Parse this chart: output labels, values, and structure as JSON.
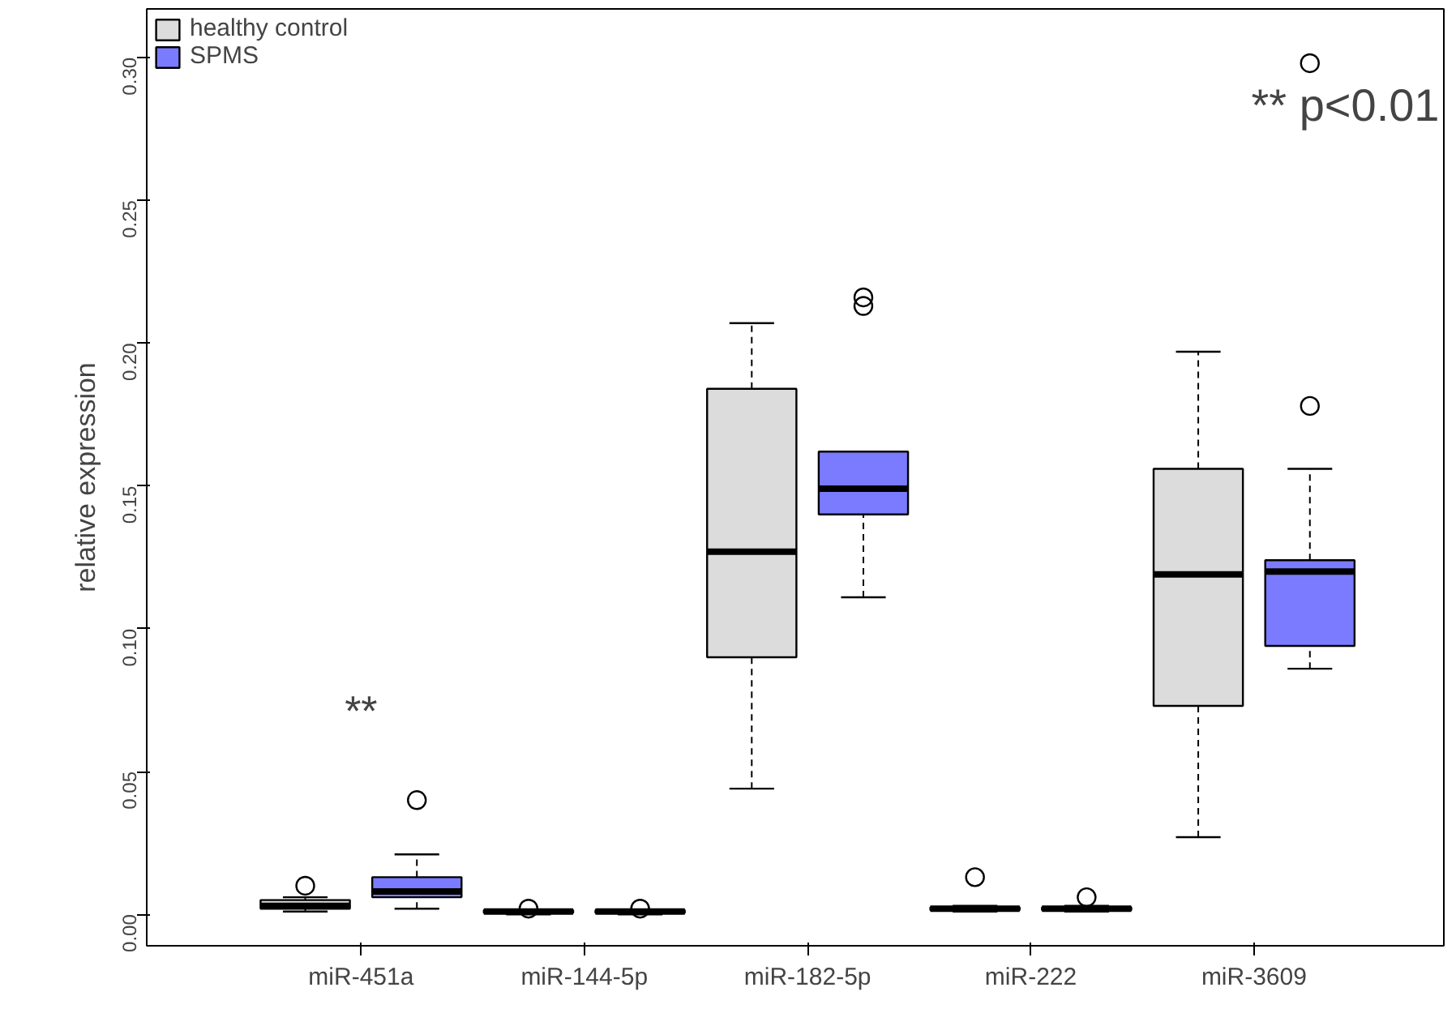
{
  "chart_data": {
    "type": "box",
    "ylabel": "relative expression",
    "categories": [
      "miR-451a",
      "miR-144-5p",
      "miR-182-5p",
      "miR-222",
      "miR-3609"
    ],
    "series": [
      {
        "name": "healthy control",
        "color": "#dcdcdc",
        "boxes": [
          {
            "low": 0.001,
            "q1": 0.002,
            "median": 0.003,
            "q3": 0.005,
            "high": 0.006,
            "outliers": [
              0.01
            ]
          },
          {
            "low": 0.0,
            "q1": 0.0005,
            "median": 0.001,
            "q3": 0.0015,
            "high": 0.0015,
            "outliers": [
              0.002
            ]
          },
          {
            "low": 0.044,
            "q1": 0.09,
            "median": 0.127,
            "q3": 0.184,
            "high": 0.207
          },
          {
            "low": 0.001,
            "q1": 0.0015,
            "median": 0.002,
            "q3": 0.0025,
            "high": 0.003,
            "outliers": [
              0.013
            ]
          },
          {
            "low": 0.027,
            "q1": 0.073,
            "median": 0.119,
            "q3": 0.156,
            "high": 0.197
          }
        ]
      },
      {
        "name": "SPMS",
        "color": "#7b7bff",
        "boxes": [
          {
            "low": 0.002,
            "q1": 0.006,
            "median": 0.008,
            "q3": 0.013,
            "high": 0.021,
            "outliers": [
              0.04
            ]
          },
          {
            "low": 0.0,
            "q1": 0.0005,
            "median": 0.001,
            "q3": 0.0015,
            "high": 0.0015,
            "outliers": [
              0.002
            ]
          },
          {
            "low": 0.111,
            "q1": 0.14,
            "median": 0.149,
            "q3": 0.162,
            "high": 0.162,
            "outliers": [
              0.213,
              0.216
            ]
          },
          {
            "low": 0.001,
            "q1": 0.0015,
            "median": 0.002,
            "q3": 0.0025,
            "high": 0.003,
            "outliers": [
              0.006
            ]
          },
          {
            "low": 0.086,
            "q1": 0.094,
            "median": 0.12,
            "q3": 0.124,
            "high": 0.156,
            "outliers": [
              0.178,
              0.298
            ]
          }
        ]
      }
    ],
    "ylim": [
      -0.011,
      0.317
    ],
    "yticks": [
      {
        "value": 0,
        "label": "0.00"
      },
      {
        "value": 0.05,
        "label": "0.05"
      },
      {
        "value": 0.1,
        "label": "0.10"
      },
      {
        "value": 0.15,
        "label": "0.15"
      },
      {
        "value": 0.2,
        "label": "0.20"
      },
      {
        "value": 0.25,
        "label": "0.25"
      },
      {
        "value": 0.3,
        "label": "0.30"
      }
    ],
    "annotations": [
      "**",
      "** p<0.01"
    ],
    "legend": "top left",
    "grid": false
  }
}
